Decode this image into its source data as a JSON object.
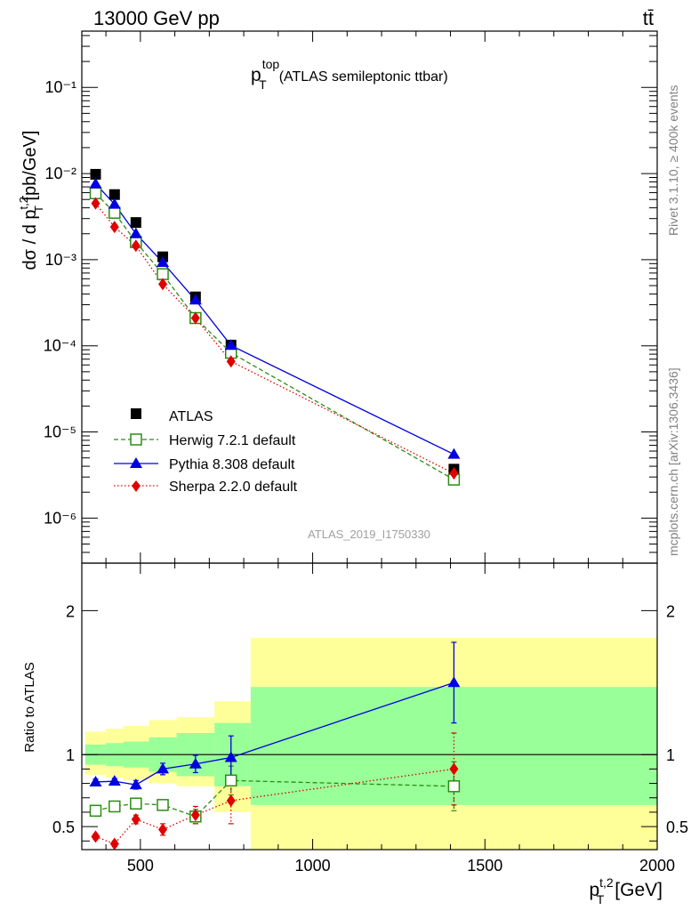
{
  "header": {
    "energy_label": "13000 GeV pp",
    "process_label": "tt̄"
  },
  "plot_title": {
    "main": "p",
    "sup": "top",
    "sub": "T",
    "rest": "(ATLAS semileptonic ttbar)"
  },
  "side_labels": {
    "rivet": "Rivet 3.1.10, ≥ 400k events",
    "source": "mcplots.cern.ch [arXiv:1306.3436]"
  },
  "watermark": "ATLAS_2019_I1750330",
  "colors": {
    "atlas": "#000000",
    "herwig": "#2b8c12",
    "pythia": "#0000e0",
    "sherpa": "#e00000",
    "band_inner": "#99ff99",
    "band_outer": "#ffff99"
  },
  "chart_data": [
    {
      "type": "line",
      "scale": "log",
      "ylabel": "dσ / d p_T^{t,2} [pb/GeV]",
      "ylim": [
        3e-07,
        0.45
      ],
      "y_tick_labels": [
        "10⁻¹",
        "10⁻²",
        "10⁻³",
        "10⁻⁴",
        "10⁻⁵",
        "10⁻⁶"
      ],
      "x": [
        370,
        425,
        487,
        565,
        660,
        763,
        1410
      ],
      "series": [
        {
          "name": "ATLAS",
          "values": [
            0.0098,
            0.0057,
            0.0027,
            0.00108,
            0.00037,
            0.000102,
            3.7e-06
          ]
        },
        {
          "name": "Herwig 7.2.1 default",
          "values": [
            0.0059,
            0.0035,
            0.0016,
            0.00068,
            0.00021,
            8.3e-05,
            2.8e-06
          ]
        },
        {
          "name": "Pythia 8.308 default",
          "values": [
            0.0076,
            0.0044,
            0.002,
            0.00093,
            0.00034,
            0.000101,
            5.5e-06
          ]
        },
        {
          "name": "Sherpa 2.2.0 default",
          "values": [
            0.0045,
            0.0024,
            0.00145,
            0.00052,
            0.00021,
            6.6e-05,
            3.3e-06
          ]
        }
      ]
    },
    {
      "type": "line",
      "ylabel": "Ratio to ATLAS",
      "xlabel": "p_T^{t,2} [GeV]",
      "xlim": [
        330,
        2000
      ],
      "ylim": [
        0.34,
        2.33
      ],
      "x_ticks": [
        500,
        1000,
        1500,
        2000
      ],
      "x_tick_labels": [
        "500",
        "1000",
        "1500",
        "2000"
      ],
      "y_ticks": [
        0.5,
        1,
        2
      ],
      "y_tick_labels": [
        "0.5",
        "1",
        "2"
      ],
      "x": [
        370,
        425,
        487,
        565,
        660,
        763,
        1410
      ],
      "bands": {
        "edges": [
          340,
          400,
          450,
          525,
          605,
          715,
          820,
          2000
        ],
        "inner_low": [
          0.93,
          0.92,
          0.91,
          0.88,
          0.85,
          0.78,
          0.65
        ],
        "inner_high": [
          1.07,
          1.08,
          1.09,
          1.12,
          1.15,
          1.22,
          1.47
        ],
        "outer_low": [
          0.86,
          0.84,
          0.82,
          0.8,
          0.78,
          0.6,
          0.34
        ],
        "outer_high": [
          1.16,
          1.18,
          1.2,
          1.24,
          1.26,
          1.37,
          1.81
        ]
      },
      "series": [
        {
          "name": "Herwig 7.2.1 default",
          "values": [
            0.61,
            0.64,
            0.66,
            0.65,
            0.57,
            0.82,
            0.78
          ],
          "errors": [
            0.02,
            0.02,
            0.02,
            0.03,
            0.05,
            0.1,
            0.17
          ]
        },
        {
          "name": "Pythia 8.308 default",
          "values": [
            0.81,
            0.815,
            0.79,
            0.9,
            0.935,
            0.98,
            1.5
          ],
          "errors": [
            0.02,
            0.02,
            0.03,
            0.04,
            0.06,
            0.15,
            0.28
          ]
        },
        {
          "name": "Sherpa 2.2.0 default",
          "values": [
            0.43,
            0.38,
            0.55,
            0.48,
            0.58,
            0.68,
            0.9
          ],
          "errors": [
            0.02,
            0.02,
            0.03,
            0.04,
            0.06,
            0.16,
            0.25
          ]
        }
      ]
    }
  ],
  "legend": [
    {
      "key": "atlas",
      "label": "ATLAS"
    },
    {
      "key": "herwig",
      "label": "Herwig 7.2.1 default"
    },
    {
      "key": "pythia",
      "label": "Pythia 8.308 default"
    },
    {
      "key": "sherpa",
      "label": "Sherpa 2.2.0 default"
    }
  ]
}
